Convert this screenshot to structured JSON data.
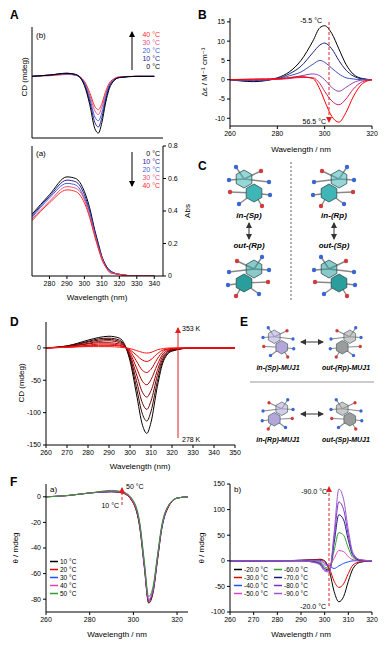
{
  "panel_labels": [
    "A",
    "B",
    "C",
    "D",
    "E",
    "F"
  ],
  "chart_data": [
    {
      "type": "line",
      "title": "(b)",
      "y_label": "CD (mdeg)",
      "x": [
        270,
        280,
        290,
        295,
        300,
        303,
        306,
        308,
        310,
        312,
        315,
        320,
        330,
        340
      ],
      "xlim": [
        270,
        345
      ],
      "ylim": [
        -10,
        8
      ],
      "tick_labels": false,
      "legend": "upper right",
      "series": [
        {
          "name": "40 °C",
          "color": "#ff2a2a",
          "values": [
            0,
            0.1,
            0.3,
            0.2,
            -0.8,
            -2.6,
            -4.9,
            -5.4,
            -4.4,
            -2.6,
            -0.8,
            -0.1,
            0,
            0
          ]
        },
        {
          "name": "30 °C",
          "color": "#e8507a",
          "values": [
            0,
            0.2,
            0.4,
            0.2,
            -0.9,
            -3,
            -5.6,
            -6.2,
            -5,
            -3,
            -1,
            -0.1,
            0,
            0
          ]
        },
        {
          "name": "20 °C",
          "color": "#3c5ee0",
          "values": [
            0,
            0.2,
            0.4,
            0.2,
            -1.1,
            -3.5,
            -6.6,
            -7.2,
            -5.9,
            -3.5,
            -1.1,
            -0.2,
            0,
            0
          ]
        },
        {
          "name": "10 °C",
          "color": "#2a1e9a",
          "values": [
            0,
            0.2,
            0.5,
            0.3,
            -1.3,
            -4,
            -7.5,
            -8.2,
            -6.7,
            -4,
            -1.3,
            -0.2,
            0,
            0
          ]
        },
        {
          "name": "0 °C",
          "color": "#000000",
          "values": [
            0,
            0.2,
            0.5,
            0.3,
            -1.5,
            -4.5,
            -8.5,
            -9.2,
            -7.5,
            -4.5,
            -1.5,
            -0.2,
            0,
            0
          ]
        }
      ]
    },
    {
      "type": "line",
      "title": "(a)",
      "x_label": "Wavelength (nm)",
      "y_label": "Abs",
      "x": [
        270,
        280,
        290,
        295,
        300,
        303,
        306,
        308,
        310,
        312,
        315,
        320,
        330,
        340
      ],
      "xlim": [
        270,
        345
      ],
      "xticks": [
        280,
        290,
        300,
        310,
        320,
        330,
        340
      ],
      "ylim": [
        0,
        0.8
      ],
      "yticks": [
        0,
        0.2,
        0.4,
        0.6,
        0.8
      ],
      "legend": "upper right",
      "series": [
        {
          "name": "0 °C",
          "color": "#000000",
          "values": [
            0.38,
            0.5,
            0.61,
            0.6,
            0.52,
            0.42,
            0.28,
            0.2,
            0.12,
            0.07,
            0.03,
            0.01,
            0,
            0
          ]
        },
        {
          "name": "10 °C",
          "color": "#2a1e9a",
          "values": [
            0.37,
            0.49,
            0.59,
            0.58,
            0.5,
            0.4,
            0.27,
            0.19,
            0.12,
            0.07,
            0.03,
            0.01,
            0,
            0
          ]
        },
        {
          "name": "20 °C",
          "color": "#3c5ee0",
          "values": [
            0.36,
            0.48,
            0.57,
            0.56,
            0.48,
            0.39,
            0.26,
            0.18,
            0.11,
            0.06,
            0.03,
            0.01,
            0,
            0
          ]
        },
        {
          "name": "30 °C",
          "color": "#e8507a",
          "values": [
            0.35,
            0.46,
            0.55,
            0.54,
            0.47,
            0.37,
            0.25,
            0.17,
            0.11,
            0.06,
            0.02,
            0.01,
            0,
            0
          ]
        },
        {
          "name": "40 °C",
          "color": "#ff2a2a",
          "values": [
            0.34,
            0.45,
            0.53,
            0.52,
            0.45,
            0.36,
            0.24,
            0.17,
            0.1,
            0.06,
            0.02,
            0.01,
            0,
            0
          ]
        }
      ]
    },
    {
      "type": "line",
      "x_label": "Wavelength / nm",
      "y_label": "Δε / M⁻¹ cm⁻¹",
      "x": [
        260,
        270,
        280,
        285,
        290,
        295,
        298,
        300,
        303,
        306,
        309,
        312,
        316,
        320
      ],
      "xlim": [
        260,
        320
      ],
      "xticks": [
        260,
        280,
        300,
        320
      ],
      "ylim": [
        -12,
        16
      ],
      "yticks": [
        -10,
        -5,
        0,
        5,
        10,
        15
      ],
      "annotations": [
        "-5.5 °C",
        "56.5 °C"
      ],
      "series": [
        {
          "color": "#000000",
          "values": [
            0,
            -0.5,
            0.5,
            2,
            5,
            10,
            13.5,
            14,
            12,
            8,
            4,
            1.5,
            0.3,
            0
          ]
        },
        {
          "color": "#1a237e",
          "values": [
            0,
            -0.3,
            0.3,
            1.5,
            3.5,
            7,
            9,
            9.5,
            8,
            5,
            2.5,
            1,
            0.2,
            0
          ]
        },
        {
          "color": "#3f51b5",
          "values": [
            0,
            -0.2,
            0.2,
            1,
            2,
            4,
            5,
            4.5,
            3,
            1.5,
            0.5,
            0.2,
            0,
            0
          ]
        },
        {
          "color": "#8e44ad",
          "values": [
            0,
            0,
            0.1,
            0.5,
            1,
            1.5,
            1,
            0,
            -2,
            -3,
            -2,
            -0.8,
            -0.1,
            0
          ]
        },
        {
          "color": "#d81b60",
          "values": [
            0,
            0,
            0.1,
            0.3,
            0.6,
            0.5,
            -1,
            -3,
            -5.5,
            -6.5,
            -5,
            -2.5,
            -0.5,
            0
          ]
        },
        {
          "color": "#ff0000",
          "values": [
            0,
            0.2,
            0.3,
            0.5,
            0.8,
            0.3,
            -2.5,
            -5.5,
            -9.5,
            -11,
            -8.5,
            -4.5,
            -1,
            0
          ]
        }
      ]
    },
    {
      "type": "line",
      "x_label": "Wavelength (nm)",
      "y_label": "CD (mdeg)",
      "x": [
        260,
        270,
        280,
        285,
        290,
        295,
        300,
        303,
        306,
        308,
        310,
        313,
        316,
        320,
        330,
        340,
        350
      ],
      "xlim": [
        260,
        350
      ],
      "xticks": [
        260,
        270,
        280,
        290,
        300,
        310,
        320,
        330,
        340,
        350
      ],
      "ylim": [
        -150,
        40
      ],
      "yticks": [
        -150,
        -100,
        -50,
        0
      ],
      "annotations": [
        "353 K",
        "278 K"
      ],
      "series": [
        {
          "color": "#000000",
          "values": [
            0,
            3,
            12,
            16,
            18,
            15,
            -20,
            -70,
            -120,
            -132,
            -115,
            -60,
            -20,
            -5,
            0,
            0,
            0
          ]
        },
        {
          "color": "#3d0000",
          "values": [
            0,
            3,
            10,
            14,
            15,
            12,
            -17,
            -60,
            -103,
            -113,
            -98,
            -52,
            -17,
            -4,
            0,
            0,
            0
          ]
        },
        {
          "color": "#660000",
          "values": [
            0,
            2,
            9,
            12,
            13,
            10,
            -14,
            -50,
            -86,
            -95,
            -82,
            -43,
            -14,
            -3,
            0,
            0,
            0
          ]
        },
        {
          "color": "#8c0000",
          "values": [
            0,
            2,
            7,
            10,
            11,
            8,
            -11,
            -40,
            -69,
            -76,
            -66,
            -35,
            -11,
            -3,
            0,
            0,
            0
          ]
        },
        {
          "color": "#b00000",
          "values": [
            0,
            2,
            6,
            8,
            8,
            6,
            -8,
            -30,
            -52,
            -57,
            -49,
            -26,
            -8,
            -2,
            0,
            0,
            0
          ]
        },
        {
          "color": "#cc0000",
          "values": [
            0,
            1,
            4,
            6,
            6,
            4,
            -5,
            -20,
            -35,
            -38,
            -33,
            -17,
            -5,
            -1,
            0,
            0,
            0
          ]
        },
        {
          "color": "#e60000",
          "values": [
            0,
            1,
            3,
            4,
            4,
            3,
            -3,
            -11,
            -19,
            -21,
            -18,
            -9,
            -3,
            -1,
            0,
            0,
            0
          ]
        },
        {
          "color": "#ff1a1a",
          "values": [
            0,
            1,
            2,
            2,
            2,
            1,
            -1,
            -4,
            -7,
            -8,
            -7,
            -3,
            -1,
            0,
            0,
            0,
            0
          ]
        }
      ]
    },
    {
      "type": "line",
      "title": "a)",
      "x_label": "Wavelength / nm",
      "y_label": "θ / mdeg",
      "x": [
        260,
        270,
        280,
        290,
        295,
        300,
        303,
        305,
        307,
        309,
        311,
        313,
        316,
        320,
        325
      ],
      "xlim": [
        260,
        325
      ],
      "xticks": [
        260,
        280,
        300,
        320
      ],
      "ylim": [
        -90,
        10
      ],
      "yticks": [
        -80,
        -60,
        -40,
        -20,
        0
      ],
      "legend": "lower left",
      "annotations": [
        "50 °C",
        "10 °C"
      ],
      "series": [
        {
          "name": "10 °C",
          "color": "#000000",
          "values": [
            0,
            1,
            3,
            4,
            3,
            -5,
            -25,
            -55,
            -83,
            -75,
            -50,
            -25,
            -8,
            -1,
            0
          ]
        },
        {
          "name": "20 °C",
          "color": "#e00000",
          "values": [
            0,
            1,
            3,
            4,
            3,
            -5,
            -24,
            -54,
            -82,
            -74,
            -49,
            -24,
            -8,
            -1,
            0
          ]
        },
        {
          "name": "30 °C",
          "color": "#1e50ff",
          "values": [
            0,
            1,
            3,
            4,
            3.5,
            -4,
            -23,
            -53,
            -81,
            -73,
            -48,
            -24,
            -7,
            -1,
            0
          ]
        },
        {
          "name": "40 °C",
          "color": "#e040c0",
          "values": [
            0,
            1,
            3,
            4.5,
            3.5,
            -4,
            -22,
            -52,
            -80,
            -72,
            -47,
            -23,
            -7,
            -1,
            0
          ]
        },
        {
          "name": "50 °C",
          "color": "#2e9e2e",
          "values": [
            0,
            1,
            3,
            5,
            4,
            -3,
            -21,
            -50,
            -78,
            -70,
            -46,
            -22,
            -7,
            -1,
            0
          ]
        }
      ]
    },
    {
      "type": "line",
      "title": "b)",
      "x_label": "Wavelength / nm",
      "y_label": "θ / mdeg",
      "x": [
        260,
        270,
        280,
        290,
        295,
        298,
        300,
        302,
        304,
        306,
        308,
        310,
        312,
        315,
        320
      ],
      "xlim": [
        260,
        320
      ],
      "xticks": [
        260,
        270,
        280,
        290,
        300,
        310,
        320
      ],
      "ylim": [
        -100,
        150
      ],
      "yticks": [
        -100,
        -50,
        0,
        50,
        100,
        150
      ],
      "legend": "lower left",
      "annotations": [
        "-90.0 °C",
        "-20.0 °C"
      ],
      "series": [
        {
          "name": "-20.0 °C",
          "color": "#000000",
          "values": [
            0,
            0,
            0,
            1,
            2,
            3,
            0,
            -20,
            -60,
            -80,
            -70,
            -40,
            -15,
            -3,
            0
          ]
        },
        {
          "name": "-30.0 °C",
          "color": "#e00000",
          "values": [
            0,
            0,
            0,
            1,
            2,
            2,
            -2,
            -15,
            -40,
            -52,
            -45,
            -25,
            -8,
            -2,
            0
          ]
        },
        {
          "name": "-40.0 °C",
          "color": "#1e50ff",
          "values": [
            0,
            0,
            0,
            1,
            1,
            1,
            -5,
            -10,
            -15,
            -10,
            -5,
            -2,
            0,
            0,
            0
          ]
        },
        {
          "name": "-50.0 °C",
          "color": "#e040c0",
          "values": [
            0,
            0,
            0,
            0,
            0,
            -1,
            -8,
            -10,
            5,
            20,
            18,
            8,
            2,
            0,
            0
          ]
        },
        {
          "name": "-60.0 °C",
          "color": "#2e9e2e",
          "values": [
            0,
            0,
            0,
            0,
            -1,
            -3,
            -12,
            -15,
            20,
            55,
            50,
            25,
            6,
            1,
            0
          ]
        },
        {
          "name": "-70.0 °C",
          "color": "#1a1a7a",
          "values": [
            0,
            0,
            0,
            0,
            -2,
            -5,
            -15,
            -18,
            35,
            90,
            80,
            40,
            10,
            1,
            0
          ]
        },
        {
          "name": "-80.0 °C",
          "color": "#7b2fbe",
          "values": [
            0,
            0,
            0,
            0,
            -2,
            -6,
            -18,
            -20,
            45,
            115,
            100,
            50,
            12,
            2,
            0
          ]
        },
        {
          "name": "-90.0 °C",
          "color": "#9b59d0",
          "values": [
            0,
            0,
            0,
            0,
            -3,
            -8,
            -20,
            -22,
            55,
            140,
            120,
            60,
            15,
            2,
            0
          ]
        }
      ]
    }
  ],
  "diagrams": [
    {
      "labels": [
        "in-(Sp)",
        "in-(Rp)",
        "out-(Rp)",
        "out-(Sp)"
      ]
    },
    {
      "labels": [
        "in-(Sp)-MUJ1",
        "out-(Rp)-MUJ1",
        "in-(Rp)-MUJ1",
        "out-(Sp)-MUJ1"
      ]
    }
  ]
}
